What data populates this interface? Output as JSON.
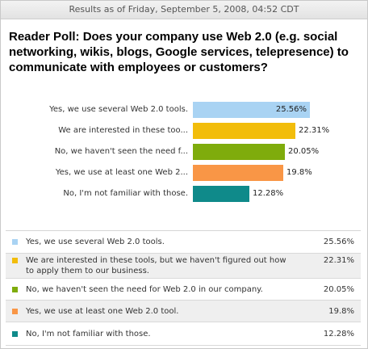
{
  "header": {
    "text": "Results as of Friday, September 5, 2008, 04:52 CDT"
  },
  "question": "Reader Poll: Does your company use Web 2.0 (e.g. social networking, wikis, blogs, Google services, telepresence) to communicate with employees or customers?",
  "chart_data": {
    "type": "bar",
    "orientation": "horizontal",
    "categories": [
      "Yes, we use several Web 2.0 tools.",
      "We are interested in these too...",
      "No, we haven't seen the need f...",
      "Yes, we use at least one Web 2...",
      "No, I'm not familiar with those."
    ],
    "values": [
      25.56,
      22.31,
      20.05,
      19.8,
      12.28
    ],
    "value_labels": [
      "25.56%",
      "22.31%",
      "20.05%",
      "19.8%",
      "12.28%"
    ],
    "colors": [
      "#a9d3f3",
      "#f2bd0b",
      "#7fac0c",
      "#f99646",
      "#0f8a8a"
    ],
    "title": "",
    "xlabel": "",
    "ylabel": ""
  },
  "results": [
    {
      "label": "Yes, we use several Web 2.0 tools.",
      "value": "25.56%",
      "color": "#a9d3f3"
    },
    {
      "label": "We are interested in these tools, but we haven't figured out how to apply them to our business.",
      "value": "22.31%",
      "color": "#f2bd0b"
    },
    {
      "label": "No, we haven't seen the need for Web 2.0 in our company.",
      "value": "20.05%",
      "color": "#7fac0c"
    },
    {
      "label": "Yes, we use at least one Web 2.0 tool.",
      "value": "19.8%",
      "color": "#f99646"
    },
    {
      "label": "No, I'm not familiar with those.",
      "value": "12.28%",
      "color": "#0f8a8a"
    }
  ]
}
